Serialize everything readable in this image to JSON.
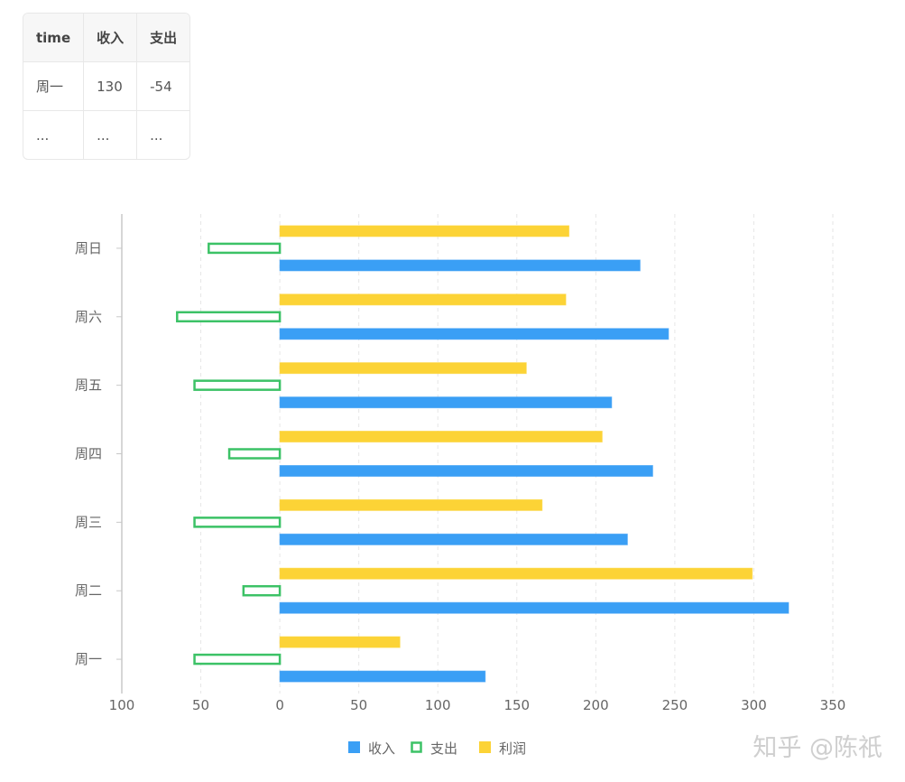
{
  "table": {
    "headers": [
      "time",
      "收入",
      "支出"
    ],
    "rows": [
      [
        "周一",
        "130",
        "-54"
      ],
      [
        "...",
        "...",
        "..."
      ]
    ]
  },
  "chart_data": {
    "type": "bar",
    "orientation": "horizontal",
    "categories": [
      "周一",
      "周二",
      "周三",
      "周四",
      "周五",
      "周六",
      "周日"
    ],
    "series": [
      {
        "name": "收入",
        "values": [
          130,
          322,
          220,
          236,
          210,
          246,
          228
        ],
        "color": "#3a9ff5",
        "style": "filled"
      },
      {
        "name": "支出",
        "values": [
          -54,
          -23,
          -54,
          -32,
          -54,
          -65,
          -45
        ],
        "color": "#3cc266",
        "style": "outline"
      },
      {
        "name": "利润",
        "values": [
          76,
          299,
          166,
          204,
          156,
          181,
          183
        ],
        "color": "#fcd336",
        "style": "filled"
      }
    ],
    "xlim": [
      -100,
      350
    ],
    "x_ticks": [
      -100,
      -50,
      0,
      50,
      100,
      150,
      200,
      250,
      300,
      350
    ],
    "x_tick_labels": [
      "100",
      "50",
      "0",
      "50",
      "100",
      "150",
      "200",
      "250",
      "300",
      "350"
    ],
    "grid": "vertical-dashed",
    "legend_position": "bottom-center",
    "title": "",
    "xlabel": "",
    "ylabel": ""
  },
  "watermark": "知乎 @陈祇"
}
